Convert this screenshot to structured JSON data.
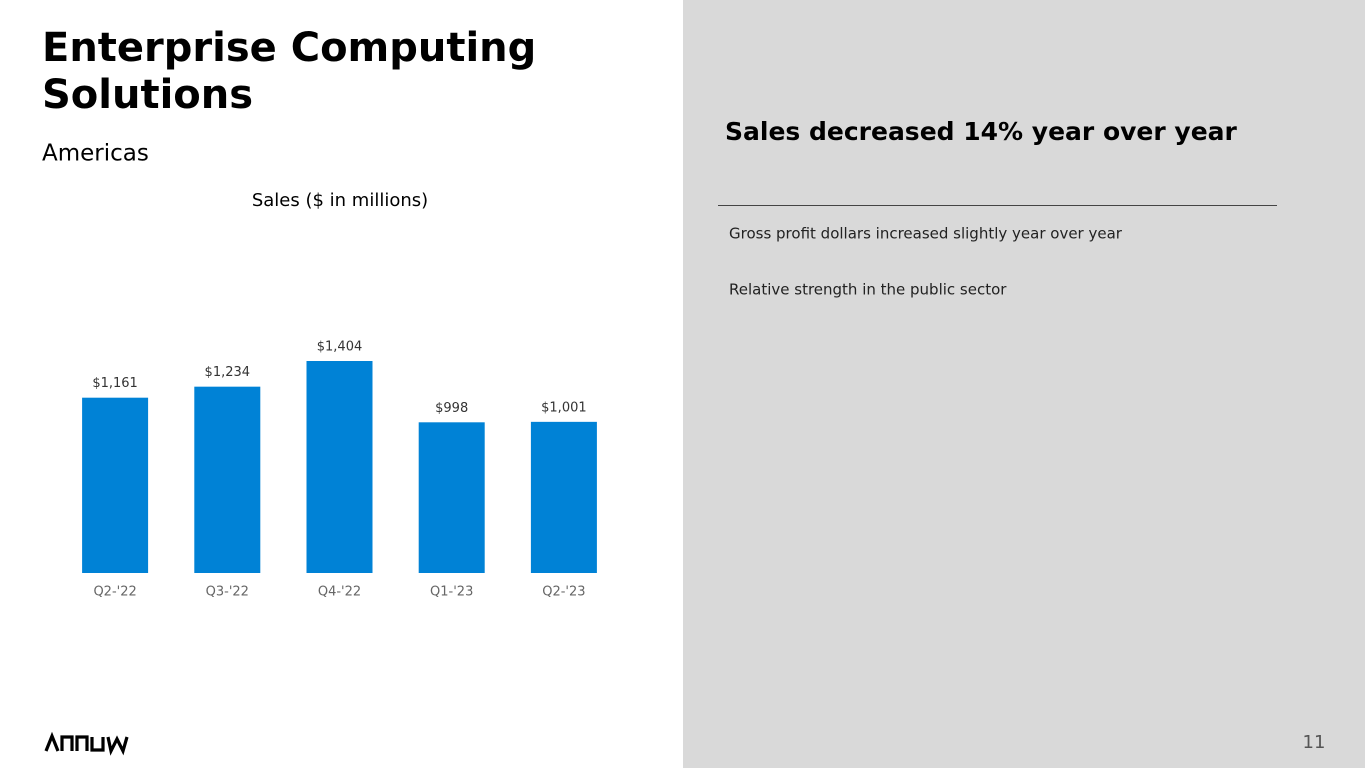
{
  "header": {
    "title_lines": [
      "Enterprise Computing",
      "Solutions"
    ],
    "subtitle": "Americas"
  },
  "chart_data": {
    "type": "bar",
    "title": "Sales ($ in millions)",
    "categories": [
      "Q2-'22",
      "Q3-'22",
      "Q4-'22",
      "Q1-'23",
      "Q2-'23"
    ],
    "values": [
      1161,
      1234,
      1404,
      998,
      1001
    ],
    "value_labels": [
      "$1,161",
      "$1,234",
      "$1,404",
      "$998",
      "$1,001"
    ],
    "color": "#0082d6"
  },
  "panel": {
    "heading": "Sales decreased 14% year over year",
    "bullets": [
      "Gross profit dollars increased slightly year over year",
      "Relative strength in the public sector"
    ]
  },
  "footer": {
    "page_number": "11"
  }
}
